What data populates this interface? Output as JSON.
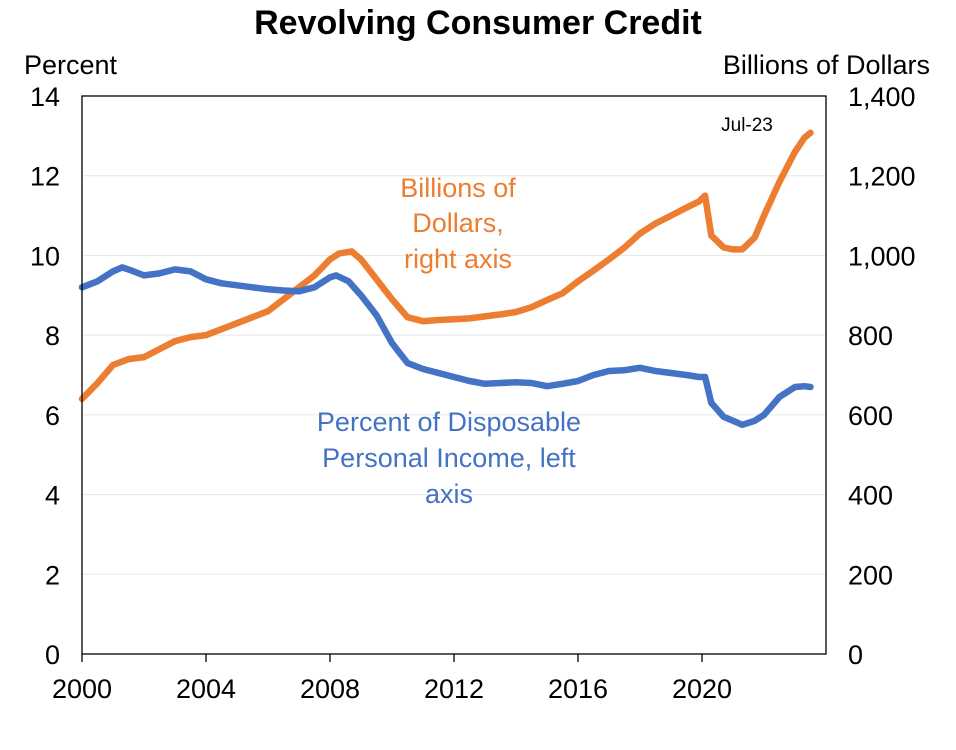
{
  "chart_data": {
    "type": "line",
    "title": "Revolving Consumer Credit",
    "left_axis": {
      "label": "Percent",
      "ylim": [
        0,
        14
      ],
      "ticks": [
        0,
        2,
        4,
        6,
        8,
        10,
        12,
        14
      ]
    },
    "right_axis": {
      "label": "Billions of Dollars",
      "ylim": [
        0,
        1400
      ],
      "ticks": [
        "0",
        "200",
        "400",
        "600",
        "800",
        "1,000",
        "1,200",
        "1,400"
      ]
    },
    "x_axis": {
      "xlim": [
        2000,
        2024
      ],
      "ticks": [
        "2000",
        "2004",
        "2008",
        "2012",
        "2016",
        "2020"
      ]
    },
    "grid": "horizontal",
    "series": [
      {
        "name": "Billions of Dollars, right axis",
        "label_lines": [
          "Billions of",
          "Dollars,",
          "right axis"
        ],
        "axis": "right",
        "color": "#ED7D31",
        "points": [
          [
            2000.0,
            640
          ],
          [
            2000.5,
            680
          ],
          [
            2001.0,
            725
          ],
          [
            2001.5,
            740
          ],
          [
            2002.0,
            745
          ],
          [
            2002.5,
            765
          ],
          [
            2003.0,
            785
          ],
          [
            2003.5,
            795
          ],
          [
            2004.0,
            800
          ],
          [
            2004.5,
            815
          ],
          [
            2005.0,
            830
          ],
          [
            2005.5,
            845
          ],
          [
            2006.0,
            860
          ],
          [
            2006.5,
            890
          ],
          [
            2007.0,
            920
          ],
          [
            2007.5,
            950
          ],
          [
            2008.0,
            990
          ],
          [
            2008.3,
            1005
          ],
          [
            2008.7,
            1010
          ],
          [
            2009.0,
            990
          ],
          [
            2009.5,
            940
          ],
          [
            2010.0,
            890
          ],
          [
            2010.5,
            845
          ],
          [
            2011.0,
            835
          ],
          [
            2011.5,
            838
          ],
          [
            2012.0,
            840
          ],
          [
            2012.5,
            842
          ],
          [
            2013.0,
            847
          ],
          [
            2013.5,
            852
          ],
          [
            2014.0,
            858
          ],
          [
            2014.5,
            870
          ],
          [
            2015.0,
            888
          ],
          [
            2015.5,
            905
          ],
          [
            2016.0,
            935
          ],
          [
            2016.5,
            962
          ],
          [
            2017.0,
            990
          ],
          [
            2017.5,
            1020
          ],
          [
            2018.0,
            1055
          ],
          [
            2018.5,
            1080
          ],
          [
            2019.0,
            1100
          ],
          [
            2019.5,
            1120
          ],
          [
            2019.9,
            1135
          ],
          [
            2020.1,
            1150
          ],
          [
            2020.3,
            1050
          ],
          [
            2020.7,
            1020
          ],
          [
            2021.0,
            1015
          ],
          [
            2021.3,
            1015
          ],
          [
            2021.7,
            1045
          ],
          [
            2022.0,
            1100
          ],
          [
            2022.5,
            1185
          ],
          [
            2023.0,
            1260
          ],
          [
            2023.3,
            1295
          ],
          [
            2023.5,
            1308
          ]
        ]
      },
      {
        "name": "Percent of Disposable Personal Income, left axis",
        "label_lines": [
          "Percent of Disposable",
          "Personal Income, left",
          "axis"
        ],
        "axis": "left",
        "color": "#4472C4",
        "points": [
          [
            2000.0,
            9.2
          ],
          [
            2000.5,
            9.35
          ],
          [
            2001.0,
            9.6
          ],
          [
            2001.3,
            9.7
          ],
          [
            2001.6,
            9.62
          ],
          [
            2002.0,
            9.5
          ],
          [
            2002.5,
            9.55
          ],
          [
            2003.0,
            9.65
          ],
          [
            2003.5,
            9.6
          ],
          [
            2004.0,
            9.4
          ],
          [
            2004.5,
            9.3
          ],
          [
            2005.0,
            9.25
          ],
          [
            2005.5,
            9.2
          ],
          [
            2006.0,
            9.15
          ],
          [
            2006.5,
            9.12
          ],
          [
            2007.0,
            9.1
          ],
          [
            2007.5,
            9.2
          ],
          [
            2008.0,
            9.45
          ],
          [
            2008.2,
            9.5
          ],
          [
            2008.6,
            9.35
          ],
          [
            2009.0,
            9.0
          ],
          [
            2009.5,
            8.5
          ],
          [
            2010.0,
            7.8
          ],
          [
            2010.5,
            7.3
          ],
          [
            2011.0,
            7.15
          ],
          [
            2011.5,
            7.05
          ],
          [
            2012.0,
            6.95
          ],
          [
            2012.5,
            6.85
          ],
          [
            2013.0,
            6.78
          ],
          [
            2013.5,
            6.8
          ],
          [
            2014.0,
            6.82
          ],
          [
            2014.5,
            6.8
          ],
          [
            2015.0,
            6.72
          ],
          [
            2015.5,
            6.78
          ],
          [
            2016.0,
            6.85
          ],
          [
            2016.5,
            7.0
          ],
          [
            2017.0,
            7.1
          ],
          [
            2017.5,
            7.12
          ],
          [
            2018.0,
            7.18
          ],
          [
            2018.5,
            7.1
          ],
          [
            2019.0,
            7.05
          ],
          [
            2019.5,
            7.0
          ],
          [
            2019.9,
            6.95
          ],
          [
            2020.1,
            6.95
          ],
          [
            2020.3,
            6.3
          ],
          [
            2020.7,
            5.95
          ],
          [
            2021.0,
            5.85
          ],
          [
            2021.3,
            5.75
          ],
          [
            2021.7,
            5.85
          ],
          [
            2022.0,
            6.0
          ],
          [
            2022.5,
            6.45
          ],
          [
            2023.0,
            6.7
          ],
          [
            2023.3,
            6.72
          ],
          [
            2023.5,
            6.7
          ]
        ]
      }
    ],
    "annotations": [
      {
        "text": "Jul-23",
        "near": "end of orange series"
      }
    ]
  }
}
